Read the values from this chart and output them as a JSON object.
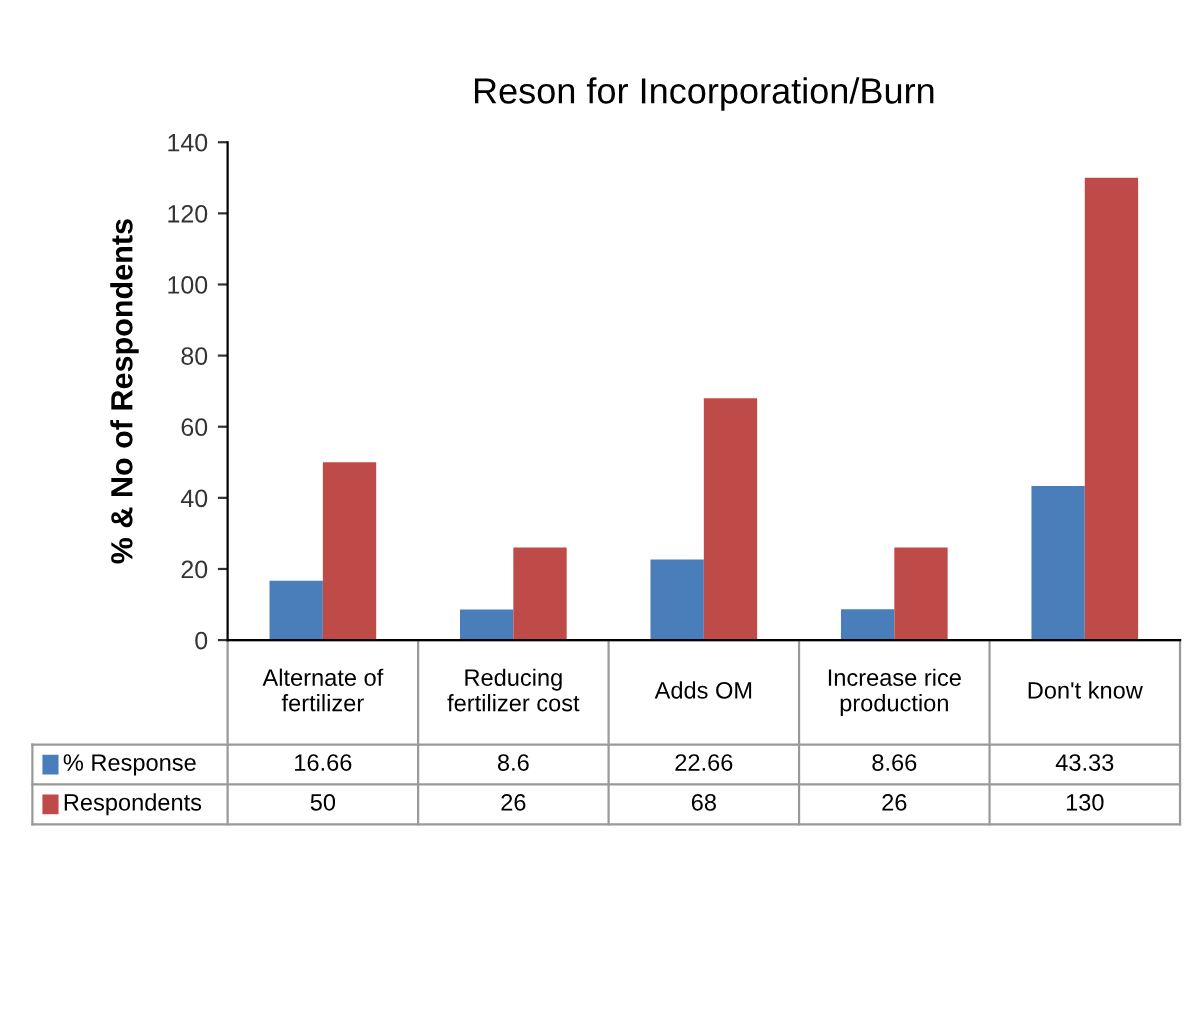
{
  "chart_data": {
    "type": "bar",
    "title": "Reson for Incorporation/Burn",
    "ylabel": "% & No of Respondents",
    "categories": [
      "Alternate of fertilizer",
      "Reducing fertilizer cost",
      "Adds OM",
      "Increase rice production",
      "Don't know"
    ],
    "series": [
      {
        "name": "% Response",
        "color": "#4a7ebb",
        "values": [
          16.66,
          8.6,
          22.66,
          8.66,
          43.33
        ]
      },
      {
        "name": "Respondents",
        "color": "#be4b48",
        "values": [
          50,
          26,
          68,
          26,
          130
        ]
      }
    ],
    "ylim": [
      0,
      140
    ],
    "yticks": [
      0,
      20,
      40,
      60,
      80,
      100,
      120,
      140
    ],
    "grid": false,
    "data_labels": true,
    "legend": "bottom"
  }
}
